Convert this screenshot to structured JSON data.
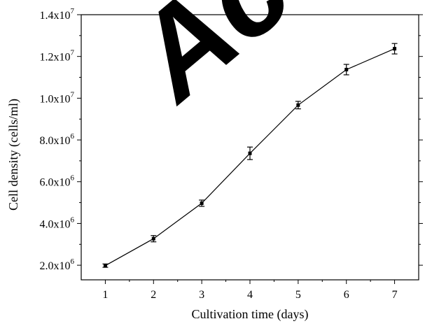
{
  "chart_data": {
    "type": "line",
    "title": "",
    "xlabel": "Cultivation time (days)",
    "ylabel": "Cell density (cells/ml)",
    "xlim": [
      0.5,
      7.5
    ],
    "ylim": [
      1300000,
      14000000
    ],
    "x_ticks": [
      1,
      2,
      3,
      4,
      5,
      6,
      7
    ],
    "x_tick_labels": [
      "1",
      "2",
      "3",
      "4",
      "5",
      "6",
      "7"
    ],
    "y_ticks": [
      2000000,
      4000000,
      6000000,
      8000000,
      10000000,
      12000000,
      14000000
    ],
    "y_tick_labels": [
      {
        "mantissa": "2.0x10",
        "exp": "6"
      },
      {
        "mantissa": "4.0x10",
        "exp": "6"
      },
      {
        "mantissa": "6.0x10",
        "exp": "6"
      },
      {
        "mantissa": "8.0x10",
        "exp": "6"
      },
      {
        "mantissa": "1.0x10",
        "exp": "7"
      },
      {
        "mantissa": "1.2x10",
        "exp": "7"
      },
      {
        "mantissa": "1.4x10",
        "exp": "7"
      }
    ],
    "grid": false,
    "series": [
      {
        "x": [
          1,
          2,
          3,
          4,
          5,
          6,
          7
        ],
        "y": [
          1980000,
          3270000,
          4970000,
          7360000,
          9670000,
          11370000,
          12370000
        ],
        "error": [
          80000,
          150000,
          150000,
          300000,
          180000,
          250000,
          250000
        ]
      }
    ],
    "colors": {
      "line": "#000000",
      "marker": "#000000",
      "watermark": "#cfcfcf"
    }
  },
  "watermark": {
    "text": "Ace"
  }
}
